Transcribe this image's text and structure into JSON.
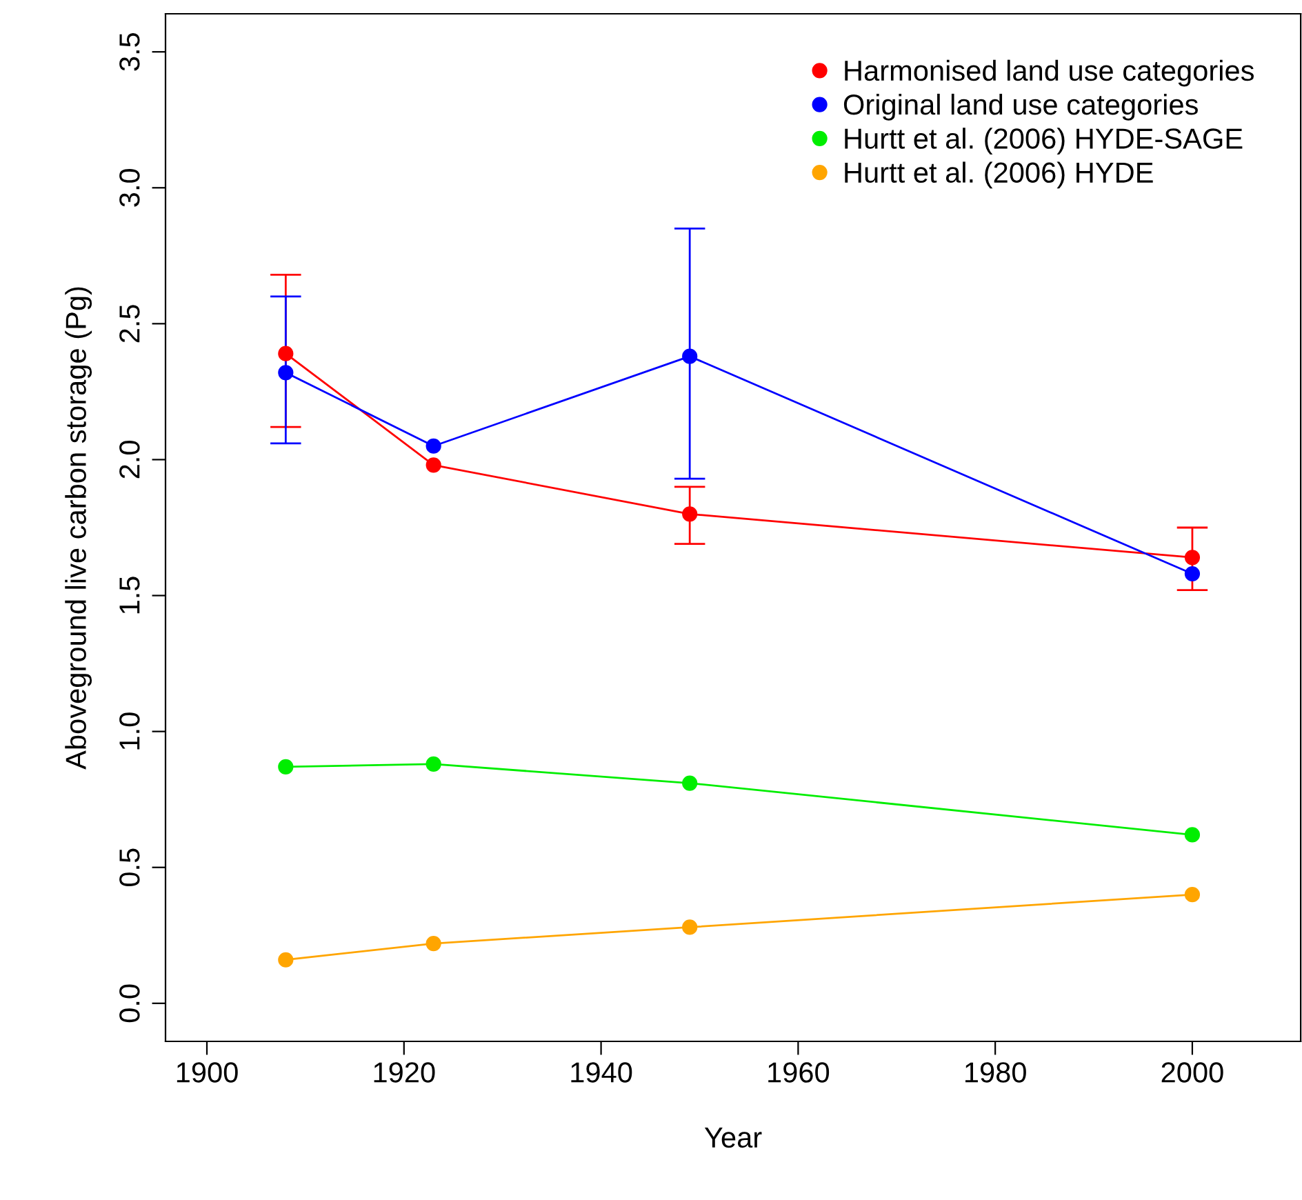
{
  "chart_data": {
    "type": "line",
    "xlabel": "Year",
    "ylabel": "Aboveground live carbon storage (Pg)",
    "x": [
      1908,
      1923,
      1949,
      2000
    ],
    "xlim": [
      1895.8,
      2011
    ],
    "xticks": [
      1900,
      1920,
      1940,
      1960,
      1980,
      2000
    ],
    "ylim": [
      -0.14,
      3.64
    ],
    "yticks": [
      {
        "value": 0,
        "label": "0.0"
      },
      0.5,
      {
        "value": 1,
        "label": "1.0"
      },
      1.5,
      {
        "value": 2,
        "label": "2.0"
      },
      2.5,
      {
        "value": 3,
        "label": "3.0"
      },
      3.5
    ],
    "marker": "circle",
    "grid": false,
    "legend": "top right",
    "series": [
      {
        "name": "Harmonised land use categories",
        "color": "#ff0000",
        "values": [
          2.39,
          1.98,
          1.8,
          1.64
        ],
        "errors": [
          [
            2.12,
            2.68
          ],
          null,
          [
            1.69,
            1.9
          ],
          [
            1.52,
            1.75
          ]
        ]
      },
      {
        "name": "Original land use categories",
        "color": "#0000ff",
        "values": [
          2.32,
          2.05,
          2.38,
          1.58
        ],
        "errors": [
          [
            2.06,
            2.6
          ],
          null,
          [
            1.93,
            2.85
          ],
          null
        ]
      },
      {
        "name": "Hurtt et al. (2006) HYDE-SAGE",
        "color": "#00ee00",
        "values": [
          0.87,
          0.88,
          0.81,
          0.62
        ]
      },
      {
        "name": "Hurtt et al. (2006) HYDE",
        "color": "#ffa500",
        "values": [
          0.16,
          0.22,
          0.28,
          0.4
        ]
      }
    ]
  }
}
